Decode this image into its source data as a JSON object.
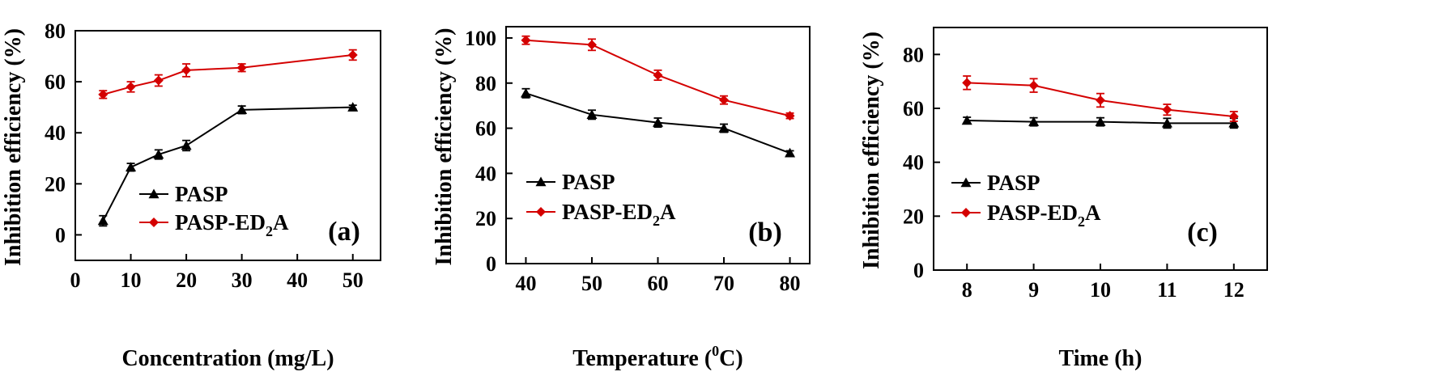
{
  "chart_data": [
    {
      "type": "line",
      "panel_label": "(a)",
      "xlabel": "Concentration (mg/L)",
      "ylabel": "Inhibition efficiency (%)",
      "xlim": [
        0,
        55
      ],
      "ylim": [
        -10,
        80
      ],
      "xticks": [
        0,
        10,
        20,
        30,
        40,
        50
      ],
      "yticks": [
        0,
        20,
        40,
        60,
        80
      ],
      "legend_position": "bottom-center",
      "series": [
        {
          "name": "PASP",
          "legend_main": "PASP",
          "legend_sub": "",
          "legend_after": "",
          "color": "#000000",
          "marker": "triangle",
          "x": [
            5,
            10,
            15,
            20,
            30,
            50
          ],
          "y": [
            5.5,
            26.5,
            31.5,
            35,
            49,
            50
          ],
          "err": [
            2,
            1.5,
            1.8,
            2,
            1.5,
            0.8
          ]
        },
        {
          "name": "PASP-ED2A",
          "legend_main": "PASP-ED",
          "legend_sub": "2",
          "legend_after": "A",
          "color": "#d40000",
          "marker": "diamond",
          "x": [
            5,
            10,
            15,
            20,
            30,
            50
          ],
          "y": [
            55,
            58,
            60.5,
            64.5,
            65.5,
            70.5
          ],
          "err": [
            1.5,
            2,
            2.2,
            2.5,
            1.5,
            2
          ]
        }
      ]
    },
    {
      "type": "line",
      "panel_label": "(b)",
      "xlabel": "Temperature (",
      "xlabel_sup": "0",
      "xlabel_after": "C)",
      "ylabel": "Inhibition efficiency (%)",
      "xlim": [
        37,
        83
      ],
      "ylim": [
        0,
        105
      ],
      "xticks": [
        40,
        50,
        60,
        70,
        80
      ],
      "yticks": [
        0,
        20,
        40,
        60,
        80,
        100
      ],
      "legend_position": "left-middle",
      "series": [
        {
          "name": "PASP",
          "legend_main": "PASP",
          "legend_sub": "",
          "legend_after": "",
          "color": "#000000",
          "marker": "triangle",
          "x": [
            40,
            50,
            60,
            70,
            80
          ],
          "y": [
            75.5,
            66,
            62.5,
            60,
            49
          ],
          "err": [
            2,
            2,
            2,
            1.8,
            1
          ]
        },
        {
          "name": "PASP-ED2A",
          "legend_main": "PASP-ED",
          "legend_sub": "2",
          "legend_after": "A",
          "color": "#d40000",
          "marker": "diamond",
          "x": [
            40,
            50,
            60,
            70,
            80
          ],
          "y": [
            99,
            97,
            83.5,
            72.5,
            65.5
          ],
          "err": [
            1.8,
            2.5,
            2.2,
            1.8,
            1.2
          ]
        }
      ]
    },
    {
      "type": "line",
      "panel_label": "(c)",
      "xlabel": "Time (h)",
      "ylabel": "Inhibition efficiency (%)",
      "xlim": [
        7.5,
        12.5
      ],
      "ylim": [
        0,
        90
      ],
      "xticks": [
        8,
        9,
        10,
        11,
        12
      ],
      "yticks": [
        0,
        20,
        40,
        60,
        80
      ],
      "legend_position": "left-middle",
      "series": [
        {
          "name": "PASP",
          "legend_main": "PASP",
          "legend_sub": "",
          "legend_after": "",
          "color": "#000000",
          "marker": "triangle",
          "x": [
            8,
            9,
            10,
            11,
            12
          ],
          "y": [
            55.5,
            55,
            55,
            54.5,
            54.5
          ],
          "err": [
            1.2,
            1.5,
            1.5,
            1.8,
            1.8
          ]
        },
        {
          "name": "PASP-ED2A",
          "legend_main": "PASP-ED",
          "legend_sub": "2",
          "legend_after": "A",
          "color": "#d40000",
          "marker": "diamond",
          "x": [
            8,
            9,
            10,
            11,
            12
          ],
          "y": [
            69.5,
            68.5,
            63,
            59.5,
            57
          ],
          "err": [
            2.5,
            2.5,
            2.5,
            2,
            1.8
          ]
        }
      ]
    }
  ]
}
